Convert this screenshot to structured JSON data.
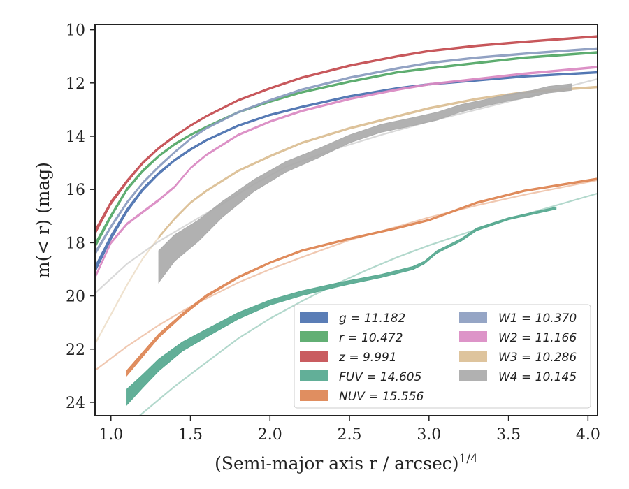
{
  "chart_data": {
    "type": "line",
    "xlabel": "(Semi-major axis r / arcsec)",
    "xlabel_sup": "1/4",
    "ylabel": "m(< r) (mag)",
    "xlim": [
      0.9,
      4.06
    ],
    "ylim": [
      24.5,
      9.8
    ],
    "y_inverted": true,
    "grid": false,
    "legend_position": "lower-right",
    "xticks": [
      "1.0",
      "1.5",
      "2.0",
      "2.5",
      "3.0",
      "3.5",
      "4.0"
    ],
    "xtick_values": [
      1.0,
      1.5,
      2.0,
      2.5,
      3.0,
      3.5,
      4.0
    ],
    "yticks": [
      "10",
      "12",
      "14",
      "16",
      "18",
      "20",
      "22",
      "24"
    ],
    "ytick_values": [
      10,
      12,
      14,
      16,
      18,
      20,
      22,
      24
    ],
    "series": [
      {
        "name": "g = 11.182",
        "color": "#4c72b0",
        "x": [
          0.9,
          1.0,
          1.1,
          1.2,
          1.3,
          1.4,
          1.5,
          1.6,
          1.8,
          2.0,
          2.2,
          2.5,
          2.8,
          3.0,
          3.3,
          3.6,
          4.06
        ],
        "y": [
          19.0,
          17.8,
          16.8,
          16.0,
          15.4,
          14.9,
          14.5,
          14.15,
          13.6,
          13.2,
          12.9,
          12.5,
          12.2,
          12.05,
          11.9,
          11.75,
          11.6
        ],
        "width": [
          0.25,
          0.2,
          0.15,
          0.12,
          0.1,
          0.08,
          0.08,
          0.06,
          0.06,
          0.05,
          0.05,
          0.05,
          0.05,
          0.05,
          0.05,
          0.05,
          0.05
        ],
        "faint": []
      },
      {
        "name": "r = 10.472",
        "color": "#55a868",
        "x": [
          0.9,
          1.0,
          1.1,
          1.2,
          1.3,
          1.4,
          1.5,
          1.6,
          1.8,
          2.0,
          2.2,
          2.5,
          2.8,
          3.0,
          3.3,
          3.6,
          4.06
        ],
        "y": [
          18.1,
          17.0,
          16.0,
          15.3,
          14.75,
          14.3,
          13.95,
          13.65,
          13.1,
          12.7,
          12.35,
          11.95,
          11.6,
          11.45,
          11.25,
          11.05,
          10.85
        ],
        "width": [
          0.2,
          0.15,
          0.12,
          0.1,
          0.08,
          0.08,
          0.06,
          0.06,
          0.05,
          0.05,
          0.05,
          0.05,
          0.05,
          0.05,
          0.05,
          0.05,
          0.05
        ],
        "faint": []
      },
      {
        "name": "z = 9.991",
        "color": "#c44e52",
        "x": [
          0.9,
          1.0,
          1.1,
          1.2,
          1.3,
          1.4,
          1.5,
          1.6,
          1.8,
          2.0,
          2.2,
          2.5,
          2.8,
          3.0,
          3.3,
          3.6,
          4.06
        ],
        "y": [
          17.6,
          16.5,
          15.7,
          15.0,
          14.45,
          14.0,
          13.6,
          13.25,
          12.65,
          12.2,
          11.8,
          11.35,
          11.0,
          10.8,
          10.6,
          10.45,
          10.25
        ],
        "width": [
          0.2,
          0.15,
          0.12,
          0.1,
          0.08,
          0.08,
          0.06,
          0.06,
          0.05,
          0.05,
          0.05,
          0.05,
          0.05,
          0.05,
          0.05,
          0.05,
          0.05
        ],
        "faint": []
      },
      {
        "name": "FUV = 14.605",
        "color": "#55a88f",
        "x": [
          1.1,
          1.2,
          1.3,
          1.45,
          1.6,
          1.8,
          2.0,
          2.2,
          2.45,
          2.7,
          2.9,
          2.97,
          3.05,
          3.2,
          3.3,
          3.5,
          3.8
        ],
        "y": [
          23.8,
          23.2,
          22.6,
          21.9,
          21.4,
          20.75,
          20.25,
          19.9,
          19.55,
          19.25,
          18.95,
          18.75,
          18.35,
          17.9,
          17.5,
          17.1,
          16.7
        ],
        "width": [
          0.6,
          0.5,
          0.45,
          0.35,
          0.3,
          0.25,
          0.2,
          0.18,
          0.15,
          0.12,
          0.12,
          0.1,
          0.1,
          0.1,
          0.1,
          0.08,
          0.08
        ],
        "faint": [
          {
            "x": [
              1.18,
              1.4,
              1.6,
              1.8,
              2.0,
              2.2,
              2.4,
              2.6,
              2.8,
              3.0,
              3.2,
              3.4,
              3.6,
              3.8,
              4.06
            ],
            "y": [
              24.5,
              23.4,
              22.5,
              21.6,
              20.85,
              20.2,
              19.6,
              19.05,
              18.55,
              18.1,
              17.7,
              17.3,
              16.95,
              16.6,
              16.15
            ]
          }
        ]
      },
      {
        "name": "NUV = 15.556",
        "color": "#dd8452",
        "x": [
          1.1,
          1.2,
          1.3,
          1.45,
          1.6,
          1.8,
          2.0,
          2.2,
          2.5,
          2.8,
          3.0,
          3.3,
          3.6,
          4.06
        ],
        "y": [
          22.9,
          22.2,
          21.5,
          20.7,
          20.0,
          19.3,
          18.75,
          18.3,
          17.85,
          17.45,
          17.15,
          16.5,
          16.05,
          15.6
        ],
        "width": [
          0.2,
          0.18,
          0.15,
          0.12,
          0.1,
          0.08,
          0.06,
          0.05,
          0.05,
          0.05,
          0.05,
          0.05,
          0.05,
          0.05
        ],
        "faint": [
          {
            "x": [
              0.9,
              1.1,
              1.3,
              1.5,
              1.8,
              2.0,
              2.2,
              2.5,
              2.8,
              3.0,
              3.3,
              3.6,
              4.06
            ],
            "y": [
              22.8,
              21.9,
              21.1,
              20.4,
              19.5,
              19.0,
              18.55,
              17.9,
              17.4,
              17.05,
              16.6,
              16.2,
              15.65
            ]
          }
        ]
      },
      {
        "name": "W1 = 10.370",
        "color": "#8c9dc0",
        "x": [
          0.9,
          1.0,
          1.1,
          1.2,
          1.3,
          1.4,
          1.5,
          1.6,
          1.8,
          2.0,
          2.2,
          2.5,
          2.8,
          3.0,
          3.3,
          3.6,
          4.06
        ],
        "y": [
          18.4,
          17.4,
          16.5,
          15.75,
          15.15,
          14.6,
          14.1,
          13.7,
          13.1,
          12.65,
          12.25,
          11.8,
          11.45,
          11.25,
          11.05,
          10.9,
          10.7
        ],
        "width": [
          0.15,
          0.12,
          0.1,
          0.08,
          0.08,
          0.06,
          0.06,
          0.05,
          0.05,
          0.05,
          0.05,
          0.05,
          0.05,
          0.05,
          0.05,
          0.05,
          0.05
        ],
        "faint": []
      },
      {
        "name": "W2 = 11.166",
        "color": "#da8bc3",
        "x": [
          0.9,
          1.0,
          1.1,
          1.2,
          1.3,
          1.4,
          1.5,
          1.6,
          1.8,
          2.0,
          2.2,
          2.5,
          2.8,
          3.0,
          3.3,
          3.6,
          4.06
        ],
        "y": [
          19.3,
          18.0,
          17.3,
          16.85,
          16.4,
          15.9,
          15.2,
          14.7,
          13.95,
          13.45,
          13.05,
          12.6,
          12.25,
          12.05,
          11.85,
          11.65,
          11.4
        ],
        "width": [
          0.12,
          0.1,
          0.08,
          0.08,
          0.08,
          0.06,
          0.06,
          0.05,
          0.05,
          0.05,
          0.05,
          0.05,
          0.05,
          0.05,
          0.05,
          0.05,
          0.05
        ],
        "faint": []
      },
      {
        "name": "W3 = 10.286",
        "color": "#dbbf95",
        "x": [
          1.3,
          1.4,
          1.5,
          1.6,
          1.8,
          2.0,
          2.2,
          2.5,
          2.8,
          3.0,
          3.3,
          3.6,
          4.06
        ],
        "y": [
          17.8,
          17.1,
          16.5,
          16.05,
          15.3,
          14.75,
          14.25,
          13.7,
          13.25,
          12.95,
          12.6,
          12.35,
          12.15
        ],
        "width": [
          0.08,
          0.08,
          0.06,
          0.06,
          0.06,
          0.05,
          0.05,
          0.05,
          0.05,
          0.05,
          0.05,
          0.05,
          0.05
        ],
        "faint": [
          {
            "x": [
              0.9,
              1.0,
              1.1,
              1.2,
              1.3
            ],
            "y": [
              21.8,
              20.7,
              19.6,
              18.6,
              17.8
            ]
          }
        ]
      },
      {
        "name": "W4 = 10.145",
        "color": "#aaaaaa",
        "x": [
          1.3,
          1.4,
          1.55,
          1.7,
          1.9,
          2.1,
          2.3,
          2.5,
          2.7,
          2.9,
          3.05,
          3.2,
          3.35,
          3.5,
          3.65,
          3.75,
          3.9
        ],
        "y": [
          18.9,
          18.2,
          17.55,
          16.75,
          15.85,
          15.15,
          14.65,
          14.1,
          13.7,
          13.45,
          13.25,
          12.95,
          12.75,
          12.55,
          12.4,
          12.25,
          12.15
        ],
        "width": [
          1.2,
          1.0,
          0.8,
          0.6,
          0.45,
          0.4,
          0.35,
          0.3,
          0.3,
          0.3,
          0.3,
          0.28,
          0.25,
          0.25,
          0.25,
          0.25,
          0.25
        ],
        "faint": [
          {
            "x": [
              0.9,
              1.1,
              1.3,
              1.5,
              1.7,
              1.9,
              2.1,
              2.4,
              2.7,
              3.0,
              3.3,
              3.6,
              4.06
            ],
            "y": [
              19.9,
              18.8,
              17.95,
              17.25,
              16.55,
              15.8,
              15.15,
              14.5,
              13.95,
              13.45,
              13.0,
              12.55,
              11.85
            ]
          }
        ]
      }
    ]
  }
}
